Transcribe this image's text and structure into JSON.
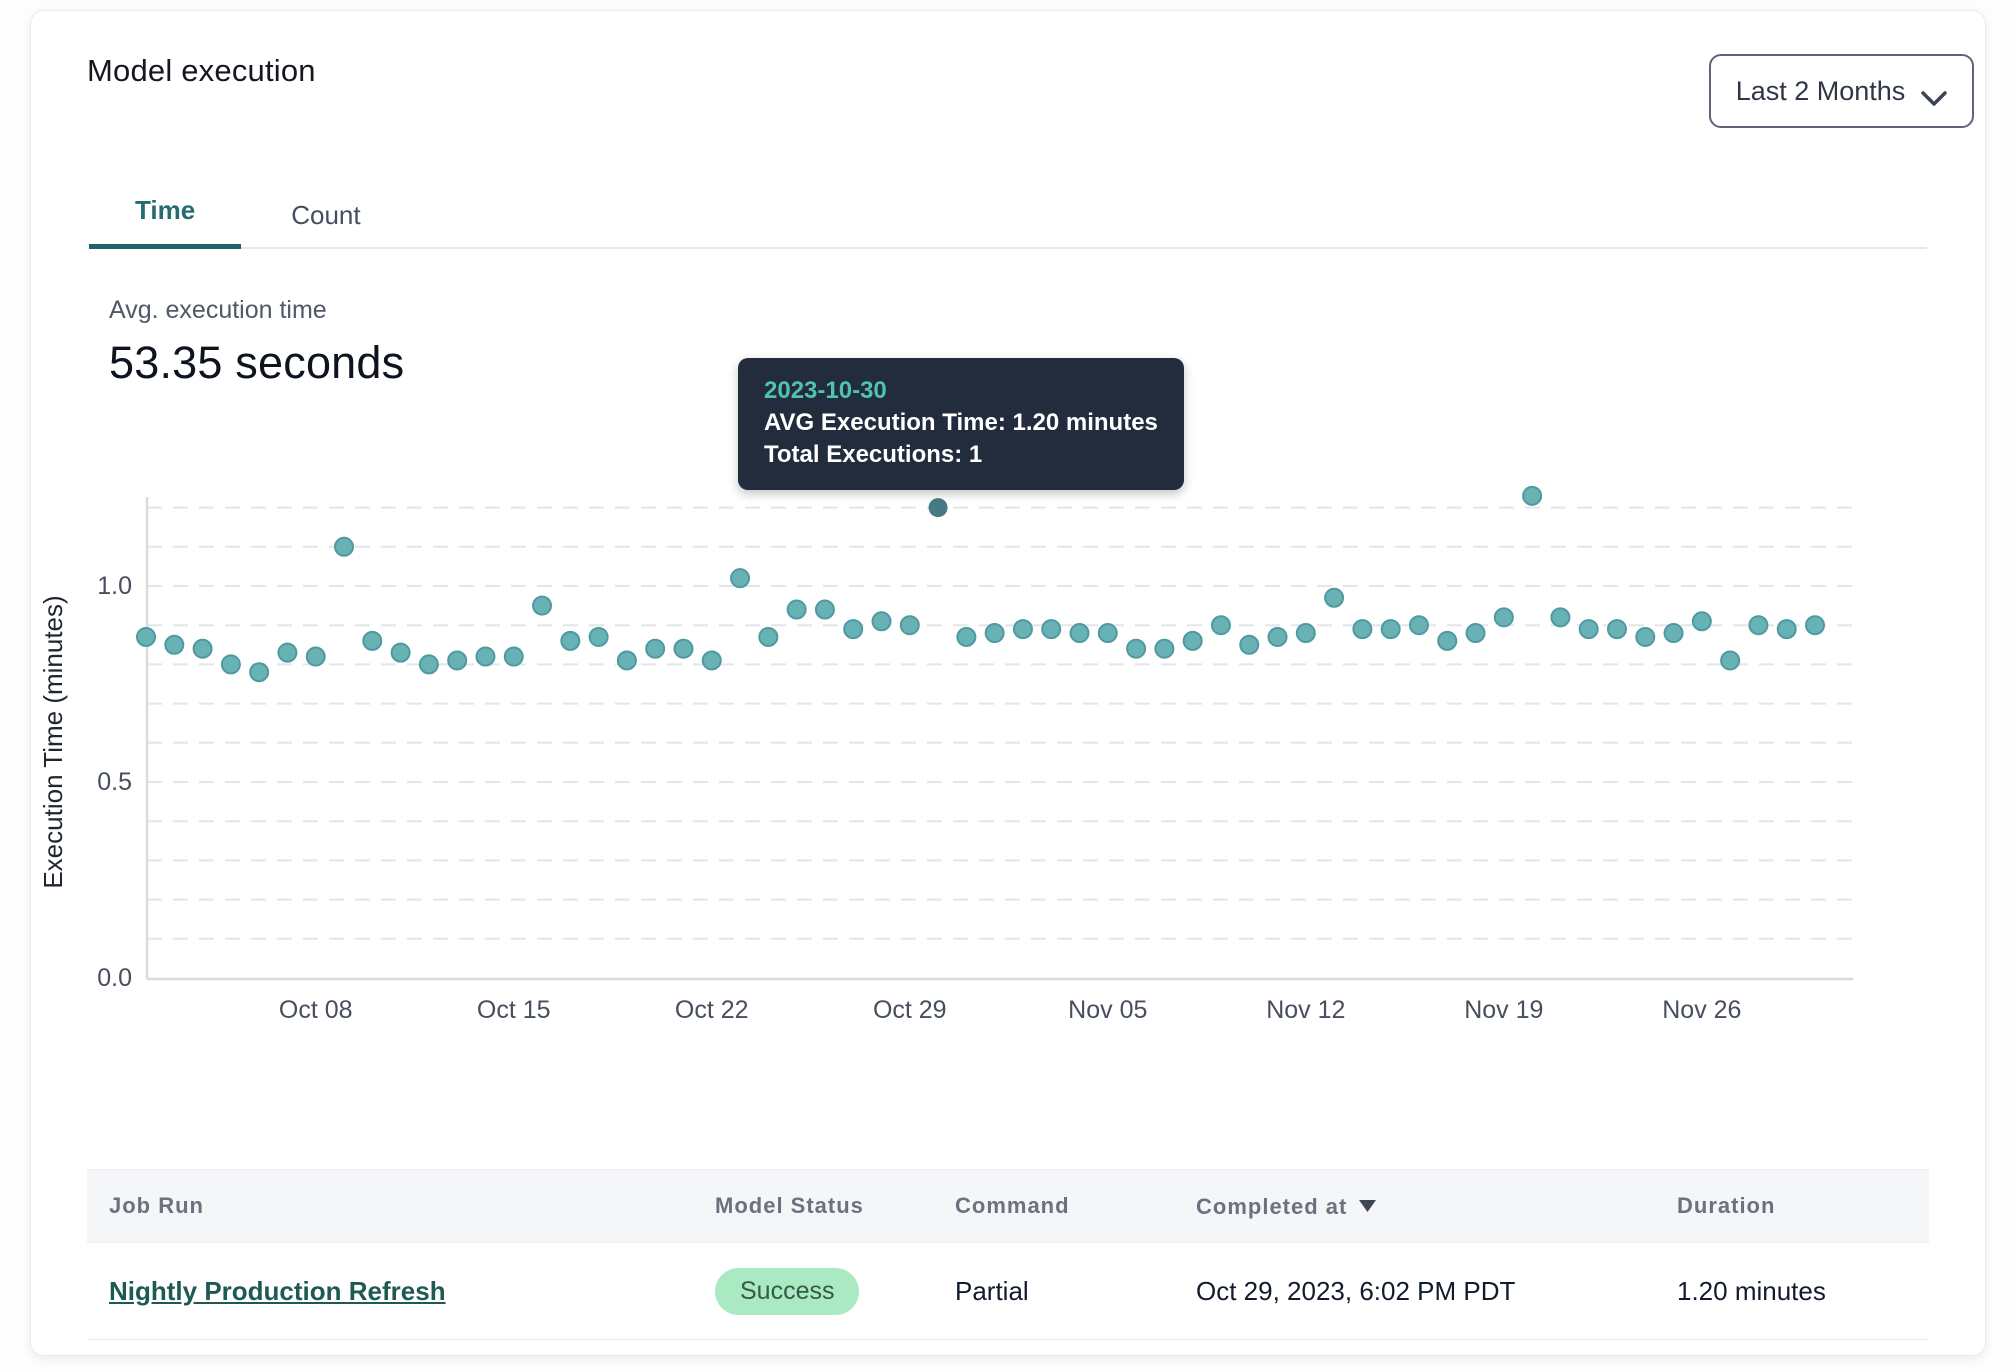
{
  "header": {
    "title": "Model execution",
    "period_selector_label": "Last 2 Months"
  },
  "tabs": [
    {
      "label": "Time",
      "active": true
    },
    {
      "label": "Count",
      "active": false
    }
  ],
  "stat": {
    "label": "Avg. execution time",
    "value": "53.35 seconds"
  },
  "tooltip": {
    "date": "2023-10-30",
    "avg_line": "AVG Execution Time: 1.20 minutes",
    "total_line": "Total Executions: 1"
  },
  "chart_data": {
    "type": "scatter",
    "title": "",
    "xlabel": "",
    "ylabel": "Execution Time (minutes)",
    "ylim": [
      0,
      1.25
    ],
    "y_ticks": [
      "0.0",
      "0.5",
      "1.0"
    ],
    "y_tick_values": [
      0,
      0.5,
      1.0
    ],
    "grid": "horizontal dashed every 0.1",
    "legend": "none",
    "x_tick_labels": [
      "Oct 08",
      "Oct 15",
      "Oct 22",
      "Oct 29",
      "Nov 05",
      "Nov 12",
      "Nov 19",
      "Nov 26"
    ],
    "x_tick_indices": [
      6,
      13,
      20,
      27,
      34,
      41,
      48,
      55
    ],
    "dates": [
      "2023-10-02",
      "2023-10-03",
      "2023-10-04",
      "2023-10-05",
      "2023-10-06",
      "2023-10-07",
      "2023-10-08",
      "2023-10-09",
      "2023-10-10",
      "2023-10-11",
      "2023-10-12",
      "2023-10-13",
      "2023-10-14",
      "2023-10-15",
      "2023-10-16",
      "2023-10-17",
      "2023-10-18",
      "2023-10-19",
      "2023-10-20",
      "2023-10-21",
      "2023-10-22",
      "2023-10-23",
      "2023-10-24",
      "2023-10-25",
      "2023-10-26",
      "2023-10-27",
      "2023-10-28",
      "2023-10-29",
      "2023-10-30",
      "2023-10-31",
      "2023-11-01",
      "2023-11-02",
      "2023-11-03",
      "2023-11-04",
      "2023-11-05",
      "2023-11-06",
      "2023-11-07",
      "2023-11-08",
      "2023-11-09",
      "2023-11-10",
      "2023-11-11",
      "2023-11-12",
      "2023-11-13",
      "2023-11-14",
      "2023-11-15",
      "2023-11-16",
      "2023-11-17",
      "2023-11-18",
      "2023-11-19",
      "2023-11-20",
      "2023-11-21",
      "2023-11-22",
      "2023-11-23",
      "2023-11-24",
      "2023-11-25",
      "2023-11-26",
      "2023-11-27",
      "2023-11-28",
      "2023-11-29",
      "2023-11-30"
    ],
    "values": [
      0.87,
      0.85,
      0.84,
      0.8,
      0.78,
      0.83,
      0.82,
      1.1,
      0.86,
      0.83,
      0.8,
      0.81,
      0.82,
      0.82,
      0.95,
      0.86,
      0.87,
      0.81,
      0.84,
      0.84,
      0.81,
      1.02,
      0.87,
      0.94,
      0.94,
      0.89,
      0.91,
      0.9,
      1.2,
      0.87,
      0.88,
      0.89,
      0.89,
      0.88,
      0.88,
      0.84,
      0.84,
      0.86,
      0.9,
      0.85,
      0.87,
      0.88,
      0.97,
      0.89,
      0.89,
      0.9,
      0.86,
      0.88,
      0.92,
      1.23,
      0.92,
      0.89,
      0.89,
      0.87,
      0.88,
      0.91,
      0.81,
      0.9,
      0.89,
      0.9
    ],
    "highlight_index": 28,
    "highlight": {
      "date": "2023-10-30",
      "avg_execution_time_minutes": 1.2,
      "total_executions": 1
    },
    "point_color": "#68b2b6",
    "point_stroke": "#4e9aa0",
    "highlight_color": "#477a82",
    "grid_color": "#e3e5e9",
    "axis_color": "#d9dbdf",
    "tick_label_color": "#474f5d"
  },
  "table": {
    "columns": [
      {
        "label": "Job Run"
      },
      {
        "label": "Model Status"
      },
      {
        "label": "Command"
      },
      {
        "label": "Completed at",
        "sorted": "desc"
      },
      {
        "label": "Duration"
      }
    ],
    "rows": [
      {
        "job_run": "Nightly Production Refresh",
        "model_status": "Success",
        "command": "Partial",
        "completed_at": "Oct 29, 2023, 6:02 PM PDT",
        "duration": "1.20 minutes"
      }
    ]
  }
}
